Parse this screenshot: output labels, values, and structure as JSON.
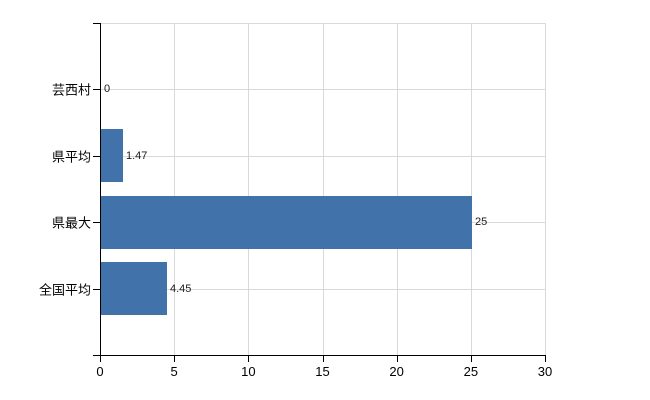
{
  "chart_data": {
    "type": "bar",
    "orientation": "horizontal",
    "title": "",
    "xlabel": "",
    "ylabel": "",
    "categories": [
      "芸西村",
      "県平均",
      "県最大",
      "全国平均"
    ],
    "values": [
      0,
      1.47,
      25,
      4.45
    ],
    "data_labels": [
      "0",
      "1.47",
      "25",
      "4.45"
    ],
    "xlim": [
      0,
      30
    ],
    "x_ticks": [
      0,
      5,
      10,
      15,
      20,
      25,
      30
    ],
    "x_tick_labels": [
      "0",
      "5",
      "10",
      "15",
      "20",
      "25",
      "30"
    ],
    "grid": true,
    "legend": false,
    "colors": {
      "bar": "#4272aa",
      "gridline": "#d9d9d9",
      "axis": "#000000",
      "text": "#000000",
      "background": "#ffffff"
    }
  }
}
